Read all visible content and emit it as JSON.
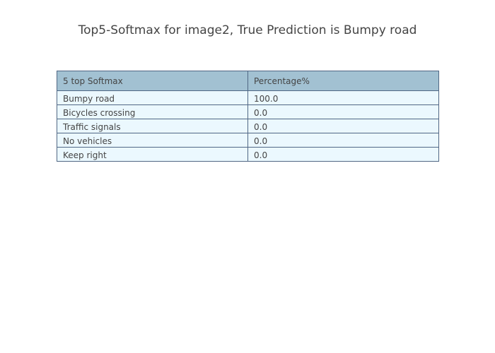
{
  "chart_data": {
    "type": "table",
    "title": "Top5-Softmax for image2, True Prediction is Bumpy road",
    "columns": [
      "5 top Softmax",
      "Percentage%"
    ],
    "rows": [
      [
        "Bumpy road",
        "100.0"
      ],
      [
        "Bicycles crossing",
        "0.0"
      ],
      [
        "Traffic signals",
        "0.0"
      ],
      [
        "No vehicles",
        "0.0"
      ],
      [
        "Keep right",
        "0.0"
      ]
    ],
    "colors": {
      "header_fill": "#a2c1d2",
      "cell_fill": "#ebf8fe",
      "line": "#506784",
      "text": "#444444"
    }
  }
}
